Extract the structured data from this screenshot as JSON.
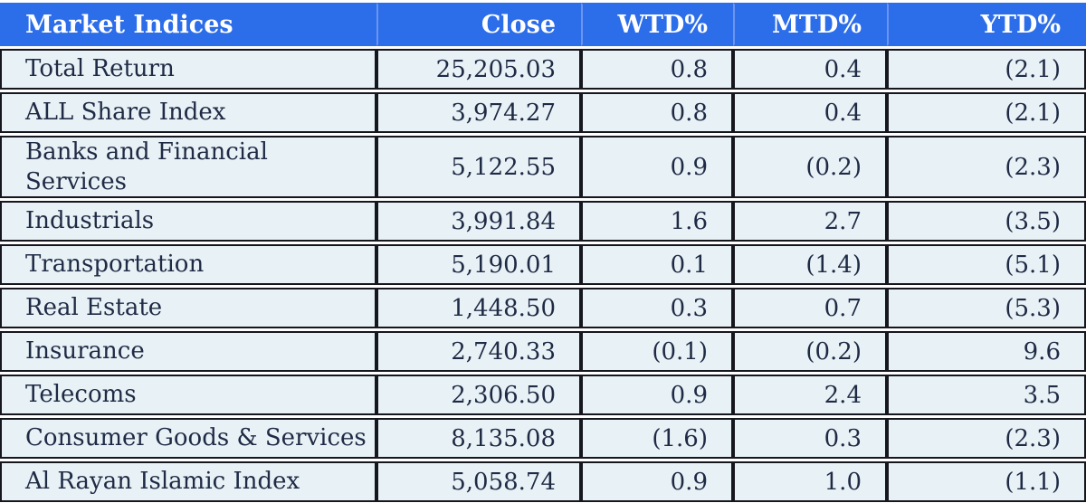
{
  "table": {
    "title": "Market Indices",
    "columns": [
      "Market Indices",
      "Close",
      "WTD%",
      "MTD%",
      "YTD%"
    ],
    "rows": [
      {
        "name": "Total Return",
        "close": "25,205.03",
        "wtd": "0.8",
        "mtd": "0.4",
        "ytd": "(2.1)"
      },
      {
        "name": "ALL Share Index",
        "close": "3,974.27",
        "wtd": "0.8",
        "mtd": "0.4",
        "ytd": "(2.1)"
      },
      {
        "name": "Banks and Financial Services",
        "close": "5,122.55",
        "wtd": "0.9",
        "mtd": "(0.2)",
        "ytd": "(2.3)"
      },
      {
        "name": "Industrials",
        "close": "3,991.84",
        "wtd": "1.6",
        "mtd": "2.7",
        "ytd": "(3.5)"
      },
      {
        "name": "Transportation",
        "close": "5,190.01",
        "wtd": "0.1",
        "mtd": "(1.4)",
        "ytd": "(5.1)"
      },
      {
        "name": "Real Estate",
        "close": "1,448.50",
        "wtd": "0.3",
        "mtd": "0.7",
        "ytd": "(5.3)"
      },
      {
        "name": "Insurance",
        "close": "2,740.33",
        "wtd": "(0.1)",
        "mtd": "(0.2)",
        "ytd": "9.6"
      },
      {
        "name": "Telecoms",
        "close": "2,306.50",
        "wtd": "0.9",
        "mtd": "2.4",
        "ytd": "3.5"
      },
      {
        "name": "Consumer Goods & Services",
        "close": "8,135.08",
        "wtd": "(1.6)",
        "mtd": "0.3",
        "ytd": "(2.3)"
      },
      {
        "name": "Al Rayan Islamic Index",
        "close": "5,058.74",
        "wtd": "0.9",
        "mtd": "1.0",
        "ytd": "(1.1)"
      }
    ]
  },
  "colors": {
    "header_bg": "#2C6DE9",
    "header_text": "#FFFFFF",
    "header_divider": "#6B95F1",
    "row_bg": "#E8F2F6",
    "border": "#16161E",
    "text": "#1F2A45"
  }
}
